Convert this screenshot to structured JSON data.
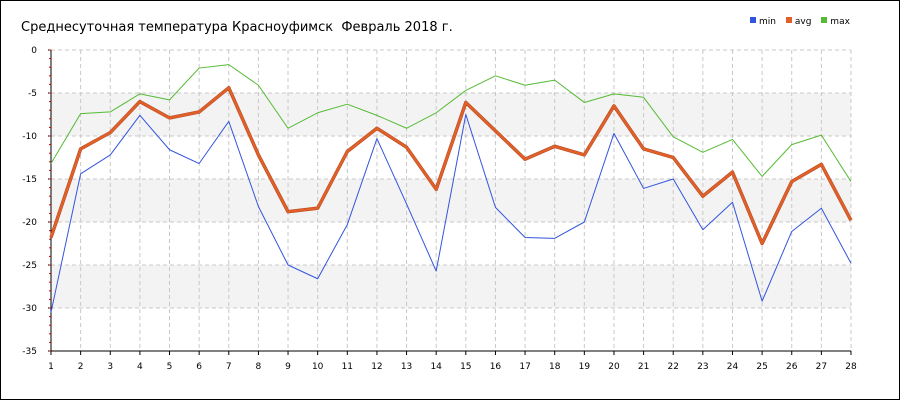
{
  "chart_data": {
    "type": "line",
    "title": "Среднесуточная температура Красноуфимск  Февраль 2018 г.",
    "xlabel": "",
    "ylabel": "",
    "x": [
      1,
      2,
      3,
      4,
      5,
      6,
      7,
      8,
      9,
      10,
      11,
      12,
      13,
      14,
      15,
      16,
      17,
      18,
      19,
      20,
      21,
      22,
      23,
      24,
      25,
      26,
      27,
      28
    ],
    "x_tick_labels": [
      "1",
      "2",
      "3",
      "4",
      "5",
      "6",
      "7",
      "8",
      "9",
      "10",
      "11",
      "12",
      "13",
      "14",
      "15",
      "16",
      "17",
      "18",
      "19",
      "20",
      "21",
      "22",
      "23",
      "24",
      "25",
      "26",
      "27",
      "28"
    ],
    "ylim": [
      -35,
      0
    ],
    "y_ticks": [
      0,
      -5,
      -10,
      -15,
      -20,
      -25,
      -30,
      -35
    ],
    "y_tick_labels": [
      "0",
      "-5",
      "-10",
      "-15",
      "-20",
      "-25",
      "-30",
      "-35"
    ],
    "grid": true,
    "legend_position": "top-right",
    "series": [
      {
        "name": "min",
        "color": "#3355dd",
        "values": [
          -30.5,
          -14.4,
          -12.2,
          -7.6,
          -11.6,
          -13.2,
          -8.3,
          -18.2,
          -25.0,
          -26.6,
          -20.3,
          -10.3,
          -17.9,
          -25.7,
          -7.5,
          -18.3,
          -21.8,
          -21.9,
          -20.0,
          -9.7,
          -16.1,
          -15.0,
          -20.9,
          -17.7,
          -29.2,
          -21.1,
          -18.4,
          -24.8
        ]
      },
      {
        "name": "avg",
        "color": "#e0602a",
        "values": [
          -21.8,
          -11.5,
          -9.6,
          -6.0,
          -7.9,
          -7.2,
          -4.4,
          -12.2,
          -18.8,
          -18.4,
          -11.8,
          -9.1,
          -11.3,
          -16.2,
          -6.1,
          -9.4,
          -12.7,
          -11.2,
          -12.2,
          -6.5,
          -11.5,
          -12.5,
          -17.0,
          -14.2,
          -22.5,
          -15.3,
          -13.3,
          -19.8
        ]
      },
      {
        "name": "max",
        "color": "#55bb33",
        "values": [
          -13.2,
          -7.4,
          -7.2,
          -5.1,
          -5.8,
          -2.1,
          -1.7,
          -4.1,
          -9.1,
          -7.3,
          -6.3,
          -7.6,
          -9.1,
          -7.3,
          -4.7,
          -3.0,
          -4.1,
          -3.5,
          -6.1,
          -5.1,
          -5.5,
          -10.1,
          -11.9,
          -10.4,
          -14.7,
          -11.0,
          -9.9,
          -15.3
        ]
      }
    ]
  }
}
